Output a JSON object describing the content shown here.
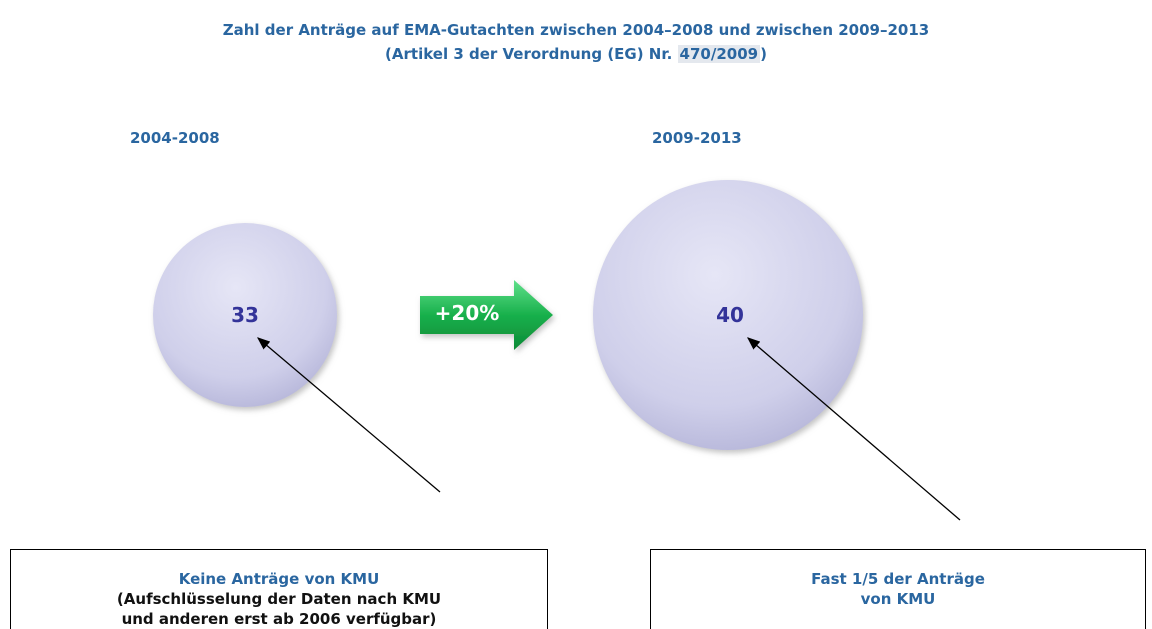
{
  "title": {
    "line1": "Zahl der Anträge auf EMA-Gutachten zwischen 2004–2008 und zwischen 2009–2013",
    "line2_before": "(Artikel 3 der Verordnung (EG) Nr. ",
    "line2_highlight": "470/2009",
    "line2_after": ")"
  },
  "periods": [
    {
      "label": "2004-2008",
      "value": 33,
      "note": [
        "Keine Anträge von KMU",
        "(Aufschlüsselung der Daten nach KMU",
        "und anderen erst ab 2006 verfügbar)"
      ]
    },
    {
      "label": "2009-2013",
      "value": 40,
      "note": [
        "Fast 1/5 der Anträge",
        "von KMU"
      ]
    }
  ],
  "change": "+20%"
}
